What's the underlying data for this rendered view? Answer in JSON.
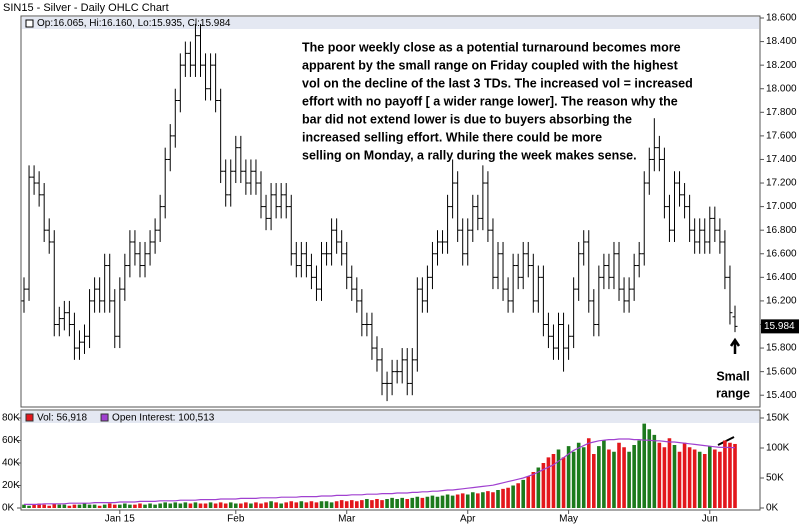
{
  "chart_data": [
    {
      "type": "ohlc",
      "title": "SIN15 - Silver - Daily OHLC Chart",
      "legend": "Op:16.065, Hi:16.160, Lo:15.935, Cl:15.984",
      "color": "#000000",
      "categories": [
        null,
        null,
        null,
        null,
        null,
        null,
        null,
        null,
        null,
        null,
        null,
        null,
        null,
        null,
        null,
        null,
        null,
        null,
        null,
        "Jan 15",
        null,
        null,
        null,
        null,
        null,
        null,
        null,
        null,
        null,
        null,
        null,
        null,
        null,
        null,
        null,
        null,
        null,
        null,
        null,
        null,
        null,
        null,
        "Feb",
        null,
        null,
        null,
        null,
        null,
        null,
        null,
        null,
        null,
        null,
        null,
        null,
        null,
        null,
        null,
        null,
        null,
        null,
        null,
        null,
        null,
        "Mar",
        null,
        null,
        null,
        null,
        null,
        null,
        null,
        null,
        null,
        null,
        null,
        null,
        null,
        null,
        null,
        null,
        null,
        null,
        null,
        null,
        null,
        null,
        null,
        "Apr",
        null,
        null,
        null,
        null,
        null,
        null,
        null,
        null,
        null,
        null,
        null,
        null,
        null,
        null,
        null,
        null,
        null,
        null,
        null,
        "May",
        null,
        null,
        null,
        null,
        null,
        null,
        null,
        null,
        null,
        null,
        null,
        null,
        null,
        null,
        null,
        null,
        null,
        null,
        null,
        null,
        null,
        null,
        null,
        null,
        null,
        null,
        null,
        "Jun",
        null,
        null,
        null,
        null,
        null
      ],
      "open": [
        16.2,
        16.3,
        17.25,
        17.2,
        17.1,
        16.8,
        16.7,
        16.0,
        16.05,
        16.1,
        16.0,
        15.8,
        15.85,
        15.9,
        16.2,
        16.3,
        16.2,
        16.5,
        16.2,
        15.9,
        16.3,
        16.5,
        16.7,
        16.6,
        16.5,
        16.6,
        16.7,
        16.8,
        17.0,
        17.4,
        17.6,
        17.9,
        18.2,
        18.3,
        18.2,
        18.45,
        18.2,
        18.0,
        18.2,
        17.9,
        17.3,
        17.1,
        17.3,
        17.5,
        17.3,
        17.2,
        17.3,
        17.2,
        17.0,
        16.9,
        17.1,
        17.0,
        17.1,
        17.0,
        16.6,
        16.5,
        16.6,
        16.5,
        16.4,
        16.3,
        16.6,
        16.6,
        16.8,
        16.7,
        16.6,
        16.4,
        16.3,
        16.2,
        16.0,
        16.0,
        15.8,
        15.7,
        15.5,
        15.5,
        15.6,
        15.6,
        15.7,
        15.5,
        15.7,
        16.3,
        16.2,
        16.4,
        16.6,
        16.7,
        16.7,
        17.0,
        17.2,
        16.8,
        16.6,
        16.8,
        17.0,
        16.9,
        17.2,
        16.8,
        16.4,
        16.6,
        16.3,
        16.2,
        16.5,
        16.4,
        16.6,
        16.5,
        16.2,
        16.4,
        16.0,
        15.9,
        15.8,
        16.0,
        15.8,
        15.9,
        16.3,
        16.6,
        16.7,
        16.2,
        16.0,
        16.4,
        16.5,
        16.4,
        16.6,
        16.3,
        16.2,
        16.3,
        16.5,
        16.6,
        17.2,
        17.4,
        17.5,
        17.4,
        17.0,
        16.8,
        17.2,
        17.1,
        17.0,
        16.8,
        16.7,
        16.8,
        16.7,
        16.9,
        16.8,
        16.7,
        16.4,
        16.065
      ],
      "high": [
        16.4,
        17.35,
        17.35,
        17.3,
        17.2,
        16.9,
        16.8,
        16.15,
        16.2,
        16.2,
        16.1,
        15.95,
        16.0,
        16.3,
        16.4,
        16.4,
        16.6,
        16.6,
        16.3,
        16.4,
        16.6,
        16.8,
        16.8,
        16.7,
        16.7,
        16.8,
        16.9,
        17.1,
        17.5,
        17.7,
        18.0,
        18.3,
        18.4,
        18.4,
        18.55,
        18.55,
        18.3,
        18.3,
        18.3,
        18.0,
        17.4,
        17.4,
        17.6,
        17.6,
        17.4,
        17.4,
        17.4,
        17.3,
        17.1,
        17.2,
        17.2,
        17.2,
        17.2,
        17.1,
        16.7,
        16.7,
        16.7,
        16.6,
        16.5,
        16.7,
        16.7,
        16.9,
        16.9,
        16.8,
        16.7,
        16.5,
        16.4,
        16.3,
        16.1,
        16.1,
        15.9,
        15.8,
        15.6,
        15.7,
        15.7,
        15.8,
        15.8,
        15.8,
        16.4,
        16.4,
        16.5,
        16.7,
        16.8,
        16.8,
        17.1,
        17.4,
        17.3,
        16.9,
        16.9,
        17.1,
        17.1,
        17.35,
        17.3,
        16.9,
        16.7,
        16.7,
        16.4,
        16.6,
        16.6,
        16.7,
        16.7,
        16.6,
        16.5,
        16.5,
        16.1,
        16.0,
        16.1,
        16.1,
        16.0,
        16.4,
        16.7,
        16.8,
        16.8,
        16.3,
        16.5,
        16.6,
        16.6,
        16.7,
        16.7,
        16.4,
        16.4,
        16.6,
        16.7,
        17.3,
        17.5,
        17.75,
        17.6,
        17.5,
        17.1,
        17.3,
        17.3,
        17.2,
        17.1,
        16.9,
        16.9,
        16.9,
        17.0,
        17.0,
        16.9,
        16.8,
        16.5,
        16.16
      ],
      "low": [
        16.1,
        16.2,
        17.1,
        17.0,
        16.7,
        16.6,
        15.9,
        15.9,
        15.95,
        15.9,
        15.7,
        15.7,
        15.75,
        15.8,
        16.1,
        16.1,
        16.1,
        16.1,
        15.8,
        15.8,
        16.2,
        16.4,
        16.5,
        16.4,
        16.4,
        16.5,
        16.6,
        16.7,
        16.9,
        17.3,
        17.5,
        17.8,
        18.1,
        18.1,
        18.1,
        18.1,
        17.9,
        17.9,
        17.8,
        17.2,
        17.0,
        17.0,
        17.2,
        17.2,
        17.1,
        17.1,
        17.1,
        16.9,
        16.8,
        16.8,
        16.9,
        16.9,
        16.9,
        16.5,
        16.4,
        16.4,
        16.4,
        16.3,
        16.2,
        16.2,
        16.5,
        16.5,
        16.6,
        16.5,
        16.3,
        16.2,
        16.1,
        15.9,
        15.9,
        15.7,
        15.6,
        15.4,
        15.35,
        15.4,
        15.5,
        15.5,
        15.4,
        15.4,
        15.6,
        16.1,
        16.1,
        16.3,
        16.5,
        16.6,
        16.6,
        16.9,
        16.7,
        16.5,
        16.5,
        16.7,
        16.8,
        16.8,
        16.7,
        16.3,
        16.3,
        16.2,
        16.1,
        16.1,
        16.3,
        16.3,
        16.4,
        16.1,
        16.1,
        15.9,
        15.8,
        15.7,
        15.7,
        15.6,
        15.7,
        15.8,
        16.2,
        16.5,
        16.1,
        15.9,
        15.9,
        16.3,
        16.3,
        16.3,
        16.2,
        16.1,
        16.1,
        16.2,
        16.4,
        16.5,
        17.1,
        17.3,
        17.3,
        16.9,
        16.7,
        16.7,
        17.0,
        16.9,
        16.7,
        16.6,
        16.6,
        16.6,
        16.6,
        16.7,
        16.6,
        16.3,
        16.0,
        15.935
      ],
      "close": [
        16.3,
        17.25,
        17.2,
        17.1,
        16.8,
        16.7,
        16.0,
        16.05,
        16.1,
        16.0,
        15.8,
        15.85,
        15.9,
        16.2,
        16.3,
        16.2,
        16.5,
        16.2,
        15.9,
        16.3,
        16.5,
        16.7,
        16.6,
        16.5,
        16.6,
        16.7,
        16.8,
        17.0,
        17.4,
        17.6,
        17.9,
        18.2,
        18.3,
        18.2,
        18.45,
        18.2,
        18.0,
        18.2,
        17.9,
        17.3,
        17.1,
        17.3,
        17.5,
        17.3,
        17.2,
        17.3,
        17.2,
        17.0,
        16.9,
        17.1,
        17.0,
        17.1,
        17.0,
        16.6,
        16.5,
        16.6,
        16.5,
        16.4,
        16.3,
        16.6,
        16.6,
        16.8,
        16.7,
        16.6,
        16.4,
        16.3,
        16.2,
        16.0,
        16.0,
        15.8,
        15.7,
        15.5,
        15.5,
        15.6,
        15.6,
        15.7,
        15.5,
        15.7,
        16.3,
        16.2,
        16.4,
        16.6,
        16.7,
        16.7,
        17.0,
        17.2,
        16.8,
        16.6,
        16.8,
        17.0,
        16.9,
        17.2,
        16.8,
        16.4,
        16.6,
        16.3,
        16.2,
        16.5,
        16.4,
        16.6,
        16.5,
        16.2,
        16.4,
        16.0,
        15.9,
        15.8,
        16.0,
        15.8,
        15.9,
        16.3,
        16.6,
        16.7,
        16.2,
        16.0,
        16.4,
        16.5,
        16.4,
        16.6,
        16.3,
        16.2,
        16.3,
        16.5,
        16.6,
        17.2,
        17.4,
        17.5,
        17.4,
        17.0,
        16.8,
        17.2,
        17.1,
        17.0,
        16.8,
        16.7,
        16.8,
        16.7,
        16.9,
        16.8,
        16.7,
        16.4,
        16.1,
        15.984
      ],
      "ylim": [
        15.3,
        18.6
      ],
      "yticks": [
        {
          "value": 15.4,
          "label": "15.400"
        },
        {
          "value": 15.6,
          "label": "15.600"
        },
        {
          "value": 15.8,
          "label": "15.800"
        },
        {
          "value": 16.0,
          "label": "16.000"
        },
        {
          "value": 16.2,
          "label": "16.200"
        },
        {
          "value": 16.4,
          "label": "16.400"
        },
        {
          "value": 16.6,
          "label": "16.600"
        },
        {
          "value": 16.8,
          "label": "16.800"
        },
        {
          "value": 17.0,
          "label": "17.000"
        },
        {
          "value": 17.2,
          "label": "17.200"
        },
        {
          "value": 17.4,
          "label": "17.400"
        },
        {
          "value": 17.6,
          "label": "17.600"
        },
        {
          "value": 17.8,
          "label": "17.800"
        },
        {
          "value": 18.0,
          "label": "18.000"
        },
        {
          "value": 18.2,
          "label": "18.200"
        },
        {
          "value": 18.4,
          "label": "18.400"
        },
        {
          "value": 18.6,
          "label": "18.600"
        }
      ],
      "annotations": [
        "The poor weekly close as a potential turnaround becomes more",
        "apparent by the small range on Friday coupled with the highest",
        "vol on the decline of the last 3 TDs.  The increased vol = increased",
        "effort with no payoff [ a wider range lower].  The reason why the",
        "bar did not extend lower is due to buyers absorbing the",
        "increased selling effort.  While there could be more",
        "selling on Monday, a rally during the week makes sense.",
        "Small",
        "range"
      ]
    },
    {
      "type": "volume",
      "series": [
        {
          "name": "Vol: 56,918",
          "color": "#e3171c",
          "up_color": "#1d7a1d",
          "values": [
            3000,
            2000,
            3000,
            4000,
            3000,
            2000,
            4000,
            3000,
            3000,
            2000,
            3000,
            3000,
            4000,
            3000,
            3000,
            2000,
            3000,
            4000,
            3000,
            3000,
            4000,
            3000,
            3000,
            4000,
            3000,
            4000,
            3000,
            4000,
            5000,
            4000,
            5000,
            4000,
            5000,
            4000,
            5000,
            4000,
            4000,
            5000,
            4000,
            5000,
            4000,
            5000,
            4000,
            4000,
            5000,
            4000,
            5000,
            4000,
            5000,
            6000,
            5000,
            4000,
            5000,
            6000,
            5000,
            6000,
            5000,
            6000,
            5000,
            6000,
            6000,
            5000,
            6000,
            7000,
            6000,
            7000,
            6000,
            7000,
            8000,
            7000,
            8000,
            7000,
            8000,
            9000,
            8000,
            9000,
            8000,
            9000,
            10000,
            9000,
            10000,
            11000,
            10000,
            11000,
            12000,
            11000,
            12000,
            13000,
            12000,
            14000,
            13000,
            14000,
            15000,
            14000,
            16000,
            17000,
            18000,
            20000,
            22000,
            25000,
            28000,
            32000,
            36000,
            40000,
            45000,
            48000,
            52000,
            45000,
            55000,
            50000,
            58000,
            54000,
            62000,
            48000,
            55000,
            60000,
            52000,
            50000,
            58000,
            54000,
            50000,
            56000,
            60000,
            75000,
            70000,
            65000,
            58000,
            54000,
            62000,
            56000,
            50000,
            58000,
            54000,
            52000,
            50000,
            48000,
            55000,
            52000,
            50000,
            60000,
            58000,
            56918
          ]
        },
        {
          "name": "Open Interest: 100,513",
          "color": "#a040d0",
          "axis": "y2",
          "values": [
            6000,
            6000,
            6000,
            6000,
            7000,
            7000,
            7000,
            7000,
            7000,
            8000,
            8000,
            8000,
            8000,
            8000,
            9000,
            9000,
            9000,
            9000,
            9000,
            10000,
            10000,
            10000,
            10000,
            11000,
            11000,
            11000,
            11000,
            12000,
            12000,
            12000,
            12000,
            13000,
            13000,
            13000,
            13000,
            14000,
            14000,
            14000,
            14000,
            15000,
            15000,
            15000,
            15000,
            16000,
            16000,
            16000,
            16000,
            17000,
            17000,
            17000,
            17000,
            18000,
            18000,
            18000,
            18000,
            19000,
            19000,
            19000,
            19000,
            20000,
            20000,
            20000,
            21000,
            21000,
            21000,
            22000,
            22000,
            22000,
            23000,
            23000,
            23000,
            24000,
            24000,
            24000,
            25000,
            25000,
            25000,
            26000,
            26000,
            27000,
            27000,
            28000,
            28000,
            29000,
            30000,
            30000,
            31000,
            32000,
            33000,
            34000,
            35000,
            36000,
            37000,
            38000,
            40000,
            42000,
            44000,
            46000,
            48000,
            50000,
            53000,
            56000,
            60000,
            64000,
            68000,
            72000,
            78000,
            84000,
            90000,
            96000,
            100000,
            104000,
            108000,
            110000,
            112000,
            113000,
            114000,
            114000,
            115000,
            115000,
            115000,
            114000,
            114000,
            113000,
            113000,
            112000,
            112000,
            111000,
            110000,
            110000,
            109000,
            108000,
            107000,
            106000,
            105000,
            104000,
            103000,
            102000,
            101000,
            101000,
            100800,
            100513
          ]
        }
      ],
      "ylim": [
        0,
        80000
      ],
      "yticks": [
        {
          "value": 0,
          "label": "0K"
        },
        {
          "value": 20000,
          "label": "20K"
        },
        {
          "value": 40000,
          "label": "40K"
        },
        {
          "value": 60000,
          "label": "60K"
        },
        {
          "value": 80000,
          "label": "80K"
        }
      ],
      "y2lim": [
        0,
        150000
      ],
      "y2ticks": [
        {
          "value": 0,
          "label": "0K"
        },
        {
          "value": 50000,
          "label": "50K"
        },
        {
          "value": 100000,
          "label": "100K"
        },
        {
          "value": 150000,
          "label": "150K"
        }
      ]
    }
  ]
}
